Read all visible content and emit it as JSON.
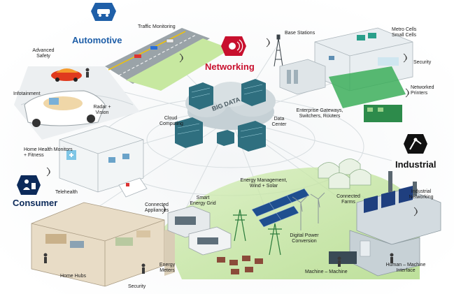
{
  "categories": {
    "automotive": "Automotive",
    "networking": "Networking",
    "industrial": "Industrial",
    "consumer": "Consumer",
    "big_data": "BIG DATA"
  },
  "labels": {
    "traffic_monitoring": "Traffic Monitoring",
    "advanced_safety": "Advanced Safety",
    "infotainment": "Infotainment",
    "radar_vision": "Radar + Vision",
    "base_stations": "Base Stations",
    "metro_cells": "Metro Cells Small Cells",
    "security_top": "Security",
    "networked_printers": "Networked Printers",
    "enterprise_gateways": "Enterprise Gateways, Switchers, Routers",
    "cloud_computing": "Cloud Computing",
    "data_center": "Data Center",
    "home_health": "Home Health Monitors + Fitness",
    "telehealth": "Telehealth",
    "connected_appliances": "Connected Appliances",
    "smart_energy_grid": "Smart Energy Grid",
    "energy_management": "Energy Management, Wind + Solar",
    "connected_farms": "Connected Farms",
    "industrial_networking": "Industrial Networking",
    "digital_power": "Digital Power Conversion",
    "home_hubs": "Home Hubs",
    "security_bottom": "Security",
    "energy_meters": "Energy Meters",
    "machine_machine": "Machine – Machine",
    "human_machine": "Human – Machine Interface"
  },
  "colors": {
    "automotive": "#1f5fa8",
    "networking": "#c8102e",
    "industrial": "#111111",
    "consumer": "#0c2a5a",
    "cloud": "#b9c6cc",
    "server": "#2f6f7f",
    "grass": "#bfe39a"
  },
  "icons": {
    "automotive": "car-icon",
    "networking": "wifi-location-icon",
    "industrial": "robot-arm-icon",
    "consumer": "person-device-icon"
  }
}
